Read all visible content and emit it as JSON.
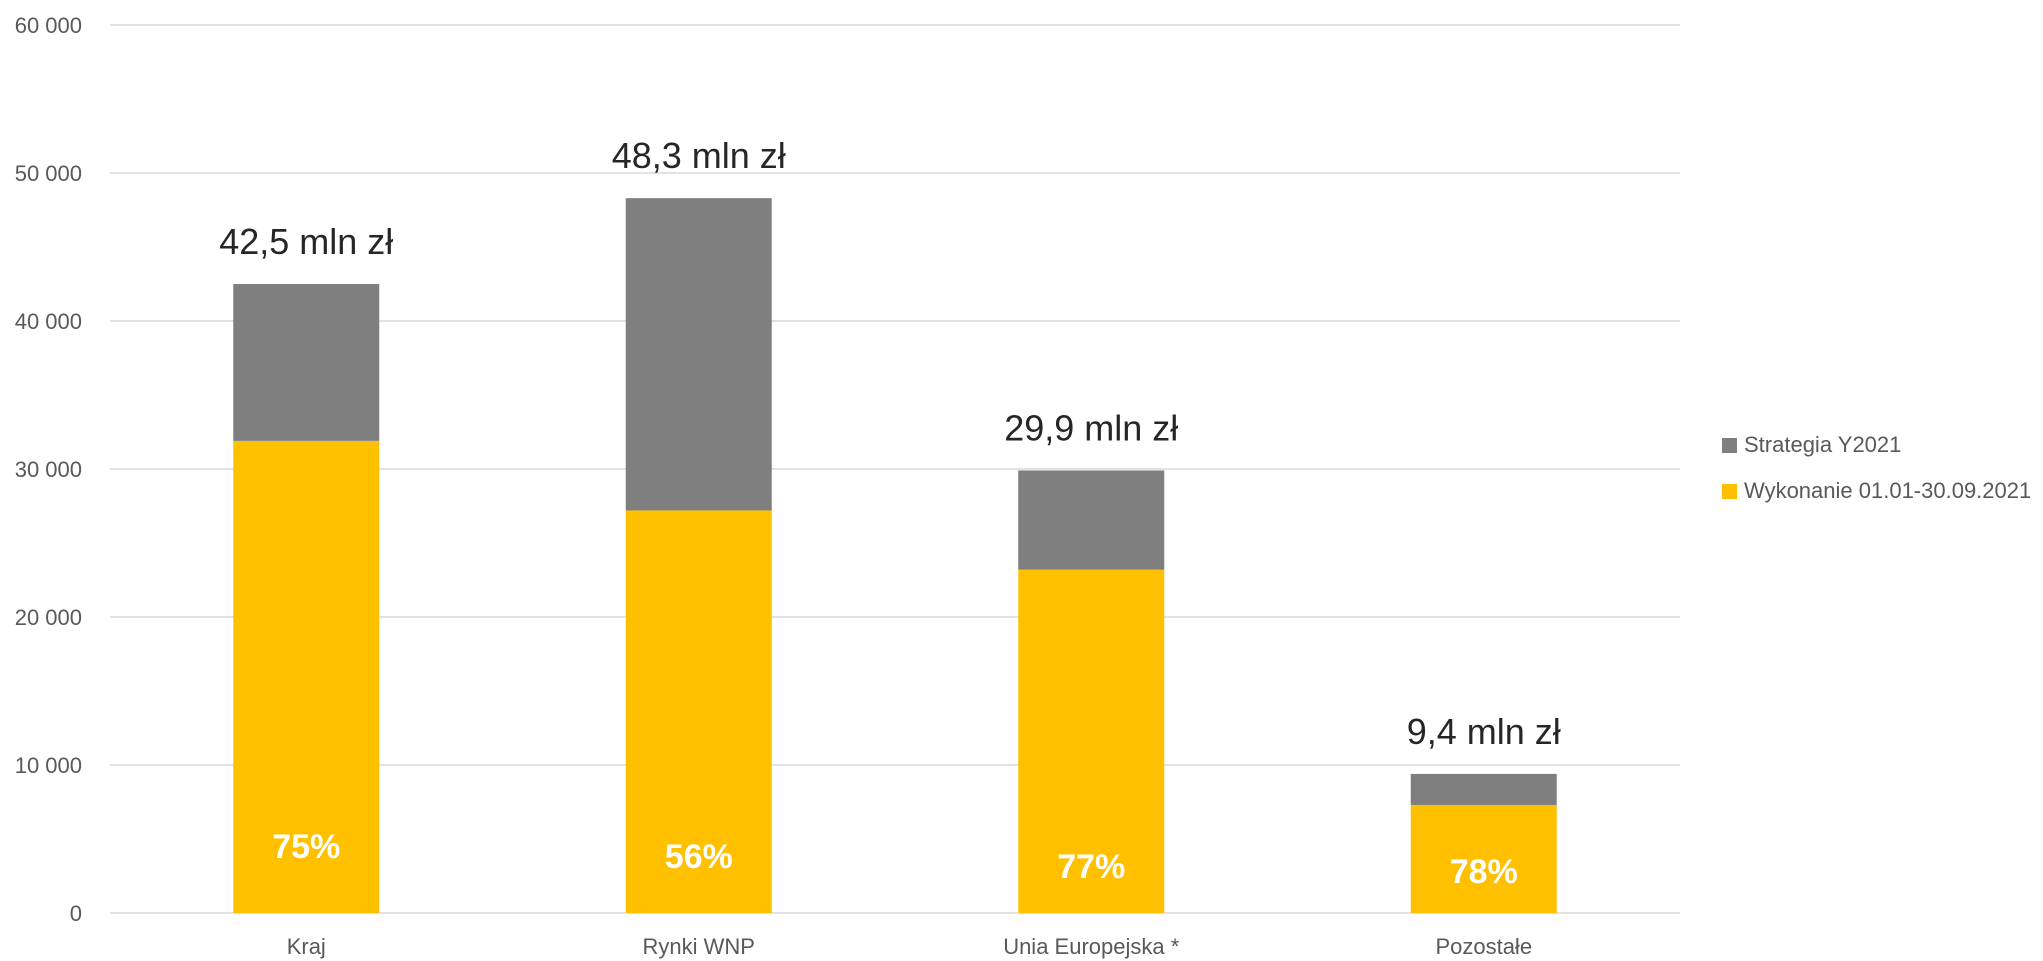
{
  "chart_data": {
    "type": "bar",
    "stacked": true,
    "categories": [
      "Kraj",
      "Rynki WNP",
      "Unia Europejska *",
      "Pozostałe"
    ],
    "series": [
      {
        "name": "Wykonanie 01.01-30.09.2021",
        "color": "#FFC000",
        "values": [
          31900,
          27200,
          23200,
          7300
        ],
        "labels": [
          "75%",
          "56%",
          "77%",
          "78%"
        ]
      },
      {
        "name": "Strategia Y2021",
        "color": "#7F7F7F",
        "values": [
          10600,
          21100,
          6700,
          2100
        ]
      }
    ],
    "totals": [
      42500,
      48300,
      29900,
      9400
    ],
    "total_labels": [
      "42,5 mln zł",
      "48,3 mln zł",
      "29,9 mln zł",
      "9,4 mln zł"
    ],
    "ylim": [
      0,
      60000
    ],
    "yticks": [
      0,
      10000,
      20000,
      30000,
      40000,
      50000,
      60000
    ],
    "ytick_labels": [
      "0",
      "10 000",
      "20 000",
      "30 000",
      "40 000",
      "50 000",
      "60 000"
    ],
    "grid": true,
    "legend_position": "right",
    "legend_order": [
      "Strategia Y2021",
      "Wykonanie 01.01-30.09.2021"
    ],
    "title": "",
    "xlabel": "",
    "ylabel": ""
  }
}
